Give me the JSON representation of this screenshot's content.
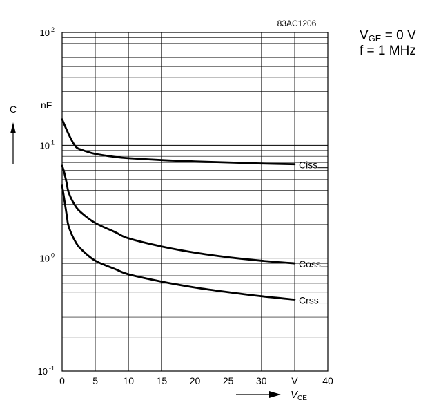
{
  "chart_data": {
    "type": "line",
    "figure_id": "83AC1206",
    "conditions": {
      "vge_symbol": "V",
      "vge_sub": "GE",
      "vge_rest": " = 0 V",
      "freq": "f = 1 MHz"
    },
    "y_axis": {
      "symbol": "C",
      "unit": "nF",
      "scale": "log",
      "ylim": [
        0.1,
        100
      ],
      "ticks": [
        {
          "value": 100,
          "base": "10",
          "exp": "2"
        },
        {
          "value": 10,
          "base": "10",
          "exp": "1"
        },
        {
          "value": 1,
          "base": "10",
          "exp": "0"
        },
        {
          "value": 0.1,
          "base": "10",
          "exp": "-1"
        }
      ]
    },
    "x_axis": {
      "symbol": "V",
      "sub": "CE",
      "unit": "V",
      "xlim": [
        0,
        40
      ],
      "ticks": [
        "0",
        "5",
        "10",
        "15",
        "20",
        "25",
        "30",
        "V",
        "40"
      ],
      "tick_values": [
        0,
        5,
        10,
        15,
        20,
        25,
        30,
        35,
        40
      ]
    },
    "grid": true,
    "series": [
      {
        "name": "Ciss",
        "x": [
          0,
          1,
          2,
          3,
          5,
          8,
          10,
          15,
          20,
          25,
          30,
          35
        ],
        "y": [
          17,
          12.5,
          9.8,
          9.1,
          8.4,
          7.9,
          7.7,
          7.4,
          7.2,
          7.05,
          6.9,
          6.8
        ]
      },
      {
        "name": "Coss",
        "x": [
          0,
          0.3,
          0.7,
          1,
          2,
          3,
          5,
          8,
          10,
          15,
          20,
          25,
          30,
          35
        ],
        "y": [
          6.6,
          5.8,
          4.6,
          3.8,
          2.9,
          2.5,
          2.05,
          1.7,
          1.5,
          1.27,
          1.12,
          1.02,
          0.95,
          0.9
        ]
      },
      {
        "name": "Crss",
        "x": [
          0,
          0.3,
          0.7,
          1,
          2,
          3,
          5,
          8,
          10,
          15,
          20,
          25,
          30,
          35
        ],
        "y": [
          4.4,
          3.4,
          2.4,
          1.9,
          1.4,
          1.18,
          0.95,
          0.8,
          0.72,
          0.62,
          0.55,
          0.5,
          0.46,
          0.43
        ]
      }
    ]
  }
}
